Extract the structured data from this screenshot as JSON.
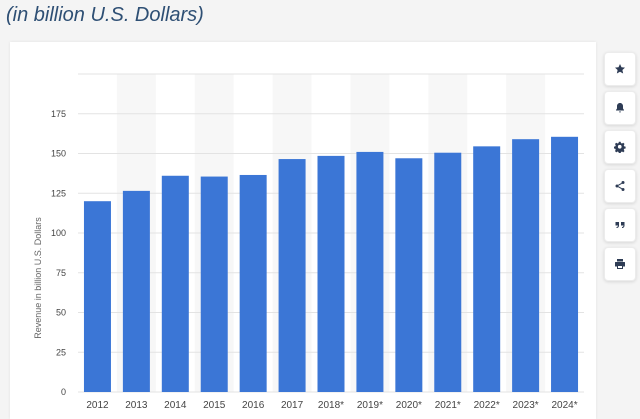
{
  "header": {
    "subtitle": "(in billion U.S. Dollars)"
  },
  "toolbar": {
    "buttons": [
      {
        "icon": "star-icon"
      },
      {
        "icon": "bell-icon"
      },
      {
        "icon": "gear-icon"
      },
      {
        "icon": "share-icon"
      },
      {
        "icon": "quote-icon"
      },
      {
        "icon": "print-icon"
      }
    ]
  },
  "chart_data": {
    "type": "bar",
    "ylabel": "Revenue in billion U.S. Dollars",
    "xlabel": "",
    "ylim": [
      0,
      200
    ],
    "yticks": [
      0,
      25,
      50,
      75,
      100,
      125,
      150,
      175
    ],
    "grid": true,
    "categories": [
      "2012",
      "2013",
      "2014",
      "2015",
      "2016",
      "2017",
      "2018*",
      "2019*",
      "2020*",
      "2021*",
      "2022*",
      "2023*",
      "2024*"
    ],
    "values": [
      120,
      126.5,
      136,
      135.5,
      136.5,
      146.5,
      148.5,
      151,
      147,
      150.5,
      154.5,
      159,
      160.5
    ],
    "colors": {
      "bar": "#3b76d6",
      "band": "#f7f7f7",
      "grid": "#e3e3e3",
      "tick_text": "#444444"
    }
  }
}
